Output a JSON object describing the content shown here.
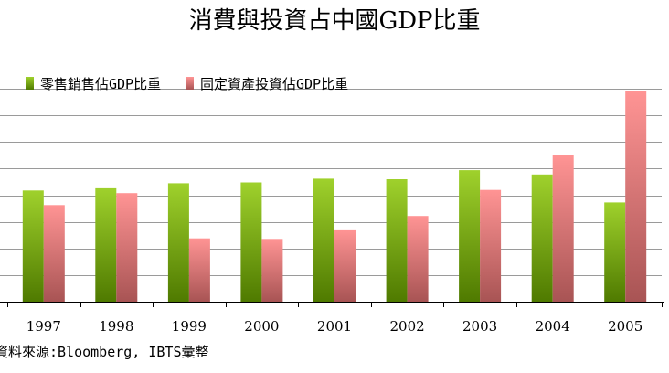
{
  "chart_data": {
    "type": "bar",
    "title": "消費與投資占中國GDP比重",
    "xlabel": "",
    "ylabel": "",
    "categories": [
      "1997",
      "1998",
      "1999",
      "2000",
      "2001",
      "2002",
      "2003",
      "2004",
      "2005"
    ],
    "series": [
      {
        "name": "零售銷售佔GDP比重",
        "values": [
          41.8,
          42.6,
          44.5,
          44.8,
          46.2,
          46.0,
          49.4,
          47.8,
          37.3
        ],
        "color_top": "#9fd12c",
        "color_bottom": "#4f7a00"
      },
      {
        "name": "固定資產投資佔GDP比重",
        "values": [
          36.3,
          40.8,
          23.8,
          23.6,
          26.8,
          32.2,
          42.0,
          55.0,
          79.0
        ],
        "color_top": "#ff9494",
        "color_bottom": "#a85454"
      }
    ],
    "ylim": [
      0,
      80
    ],
    "grid": true,
    "legend_position": "top-left",
    "source": "資料來源:Bloomberg, IBTS彙整"
  }
}
